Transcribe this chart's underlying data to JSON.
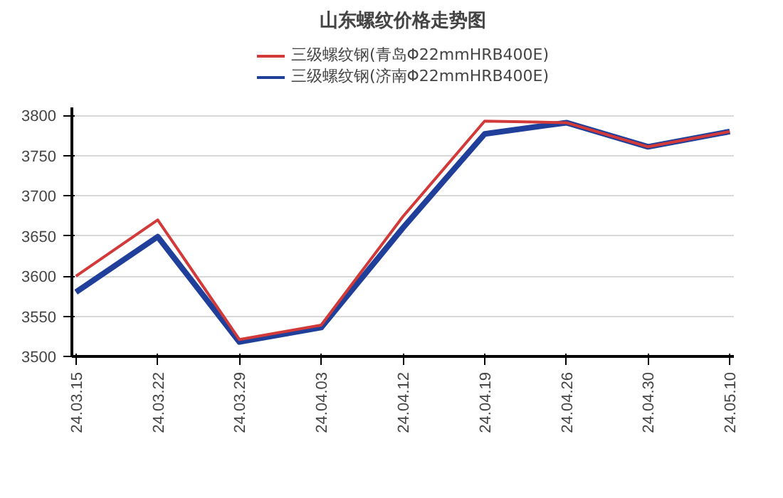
{
  "chart_data": {
    "type": "line",
    "title": "山东螺纹价格走势图",
    "categories": [
      "24.03.15",
      "24.03.22",
      "24.03.29",
      "24.04.03",
      "24.04.12",
      "24.04.19",
      "24.04.26",
      "24.04.30",
      "24.05.10"
    ],
    "series": [
      {
        "name": "三级螺纹钢(青岛Φ22mmHRB400E)",
        "color": "#d23a3a",
        "values": [
          3600,
          3670,
          3521,
          3539,
          3674,
          3793,
          3791,
          3761,
          3780
        ]
      },
      {
        "name": "三级螺纹钢(济南Φ22mmHRB400E)",
        "color": "#1f3f9a",
        "values": [
          3580,
          3649,
          3518,
          3536,
          3660,
          3777,
          3791,
          3761,
          3780
        ]
      }
    ],
    "ylim": [
      3500,
      3810
    ],
    "yticks": [
      3500,
      3550,
      3600,
      3650,
      3700,
      3750,
      3800
    ],
    "grid": "y",
    "legend": "top",
    "marker": "none",
    "line_style": "solid"
  }
}
